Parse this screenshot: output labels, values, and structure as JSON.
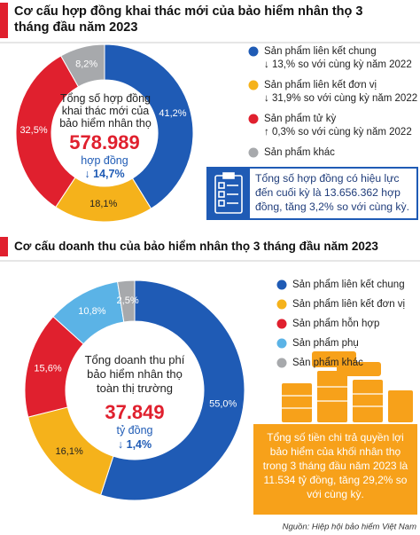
{
  "chart_data": [
    {
      "type": "pie",
      "title": "Cơ cấu hợp đồng khai thác mới của bảo hiểm nhân thọ 3 tháng đầu năm 2023",
      "categories": [
        "Sản phẩm liên kết chung",
        "Sản phẩm liên kết đơn vị",
        "Sản phẩm tử kỳ",
        "Sản phẩm khác"
      ],
      "values": [
        41.2,
        18.1,
        32.5,
        8.2
      ],
      "value_labels": [
        "41,2%",
        "18,1%",
        "32,5%",
        "8,2%"
      ],
      "colors": [
        "#1f5bb5",
        "#f5b21b",
        "#e0202e",
        "#a7a9ac"
      ],
      "notes": [
        "↓ 13,% so với cùng kỳ năm 2022",
        "↓ 31,9% so với cùng kỳ năm 2022",
        "↑ 0,3% so với cùng kỳ năm 2022",
        null
      ],
      "center_text": "Tổng số hợp đồng khai thác mới của bảo hiểm nhân thọ",
      "center_value": "578.989",
      "center_unit": "hợp đồng",
      "center_change": "↓ 14,7%",
      "callout": "Tổng số hợp đồng có hiệu lực đến cuối kỳ là 13.656.362 hợp đồng, tăng 3,2% so với cùng kỳ."
    },
    {
      "type": "pie",
      "title": "Cơ cấu doanh thu của bảo hiểm nhân thọ 3 tháng đầu năm 2023",
      "categories": [
        "Sản phẩm liên kết chung",
        "Sản phẩm liên kết đơn vị",
        "Sản phẩm hỗn hợp",
        "Sản phẩm phụ",
        "Sản phẩm khác"
      ],
      "values": [
        55.0,
        16.1,
        15.6,
        10.8,
        2.5
      ],
      "value_labels": [
        "55,0%",
        "16,1%",
        "15,6%",
        "10,8%",
        "2,5%"
      ],
      "colors": [
        "#1f5bb5",
        "#f5b21b",
        "#e0202e",
        "#5bb3e6",
        "#a7a9ac"
      ],
      "center_text": "Tổng doanh thu phí bảo hiểm nhân thọ toàn thị trường",
      "center_value": "37.849",
      "center_unit": "tỷ đồng",
      "center_change": "↓ 1,4%",
      "callout": "Tổng số tiền chi trả quyền lợi bảo hiểm của khối nhân thọ trong 3 tháng đầu năm 2023 là 11.534 tỷ đồng, tăng 29,2% so với cùng kỳ.",
      "source": "Nguồn: Hiệp hội bảo hiểm  Việt Nam"
    }
  ]
}
